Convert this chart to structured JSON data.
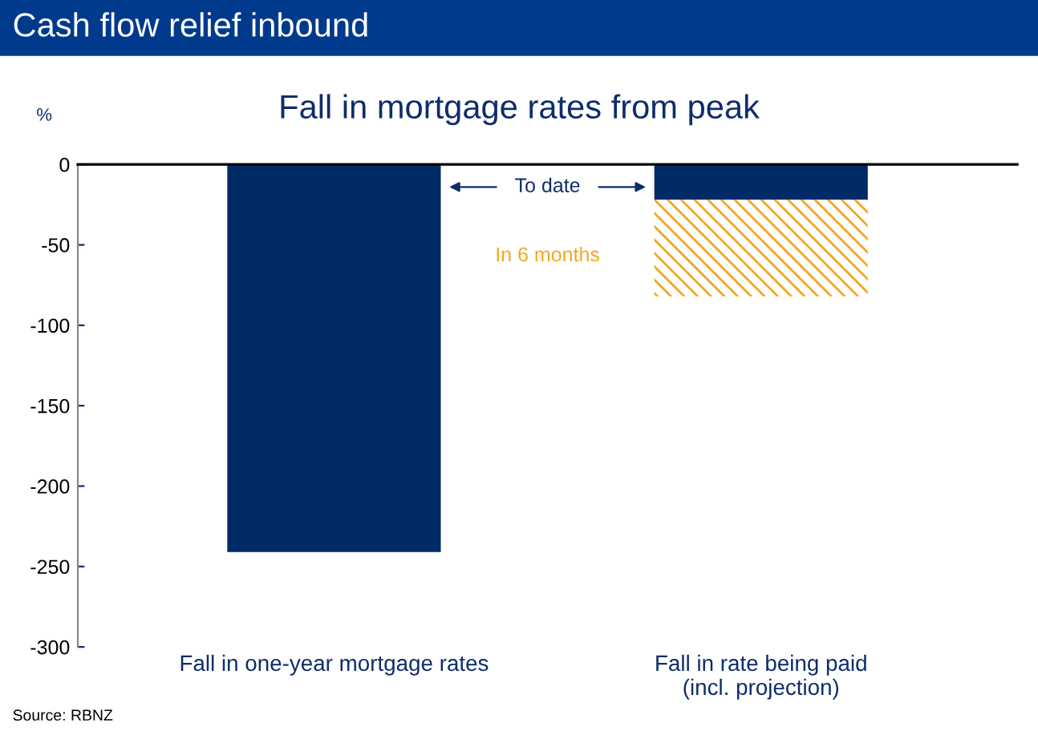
{
  "chart_data": {
    "type": "bar",
    "title": "Cash flow relief inbound",
    "subtitle": "Fall in mortgage rates from peak",
    "ylabel": "%",
    "categories": [
      "Fall in one-year mortgage rates",
      "Fall in rate being paid\n(incl. projection)"
    ],
    "stacked": true,
    "series": [
      {
        "name": "To date",
        "color": "#002b66",
        "values": [
          -241,
          -22
        ]
      },
      {
        "name": "In 6 months",
        "color": "#f5a623",
        "values": [
          null,
          -60
        ]
      }
    ],
    "ylim": [
      -300,
      0
    ],
    "yticks": [
      0,
      -50,
      -100,
      -150,
      -200,
      -250,
      -300
    ],
    "grid": false,
    "annotations": [
      "Source: RBNZ"
    ]
  }
}
